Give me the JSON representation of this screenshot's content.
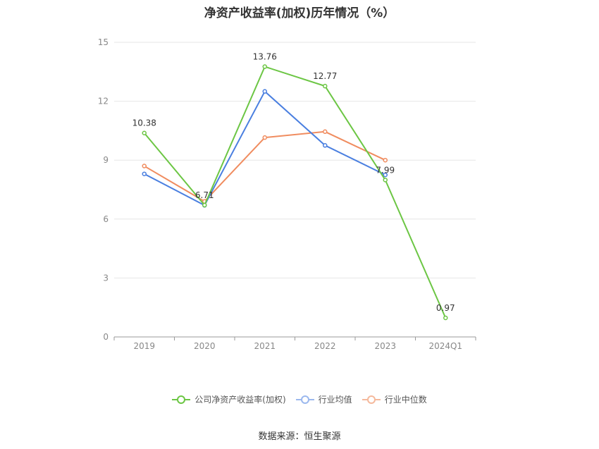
{
  "chart_data": {
    "type": "line",
    "title": "净资产收益率(加权)历年情况（%）",
    "categories": [
      "2019",
      "2020",
      "2021",
      "2022",
      "2023",
      "2024Q1"
    ],
    "ylim": [
      0,
      15
    ],
    "yticks": [
      0,
      3,
      6,
      9,
      12,
      15
    ],
    "grid": true,
    "legend_position": "bottom",
    "series": [
      {
        "name": "公司净资产收益率(加权)",
        "color": "#6cc644",
        "values": [
          10.38,
          6.71,
          13.76,
          12.77,
          7.99,
          0.97
        ],
        "show_labels": true
      },
      {
        "name": "行业均值",
        "color": "#4a7fe0",
        "values": [
          8.3,
          6.7,
          12.5,
          9.75,
          8.25,
          null
        ],
        "show_labels": false
      },
      {
        "name": "行业中位数",
        "color": "#f08c5f",
        "values": [
          8.7,
          6.9,
          10.15,
          10.45,
          9.0,
          null
        ],
        "show_labels": false
      }
    ]
  },
  "source": "数据来源：恒生聚源"
}
